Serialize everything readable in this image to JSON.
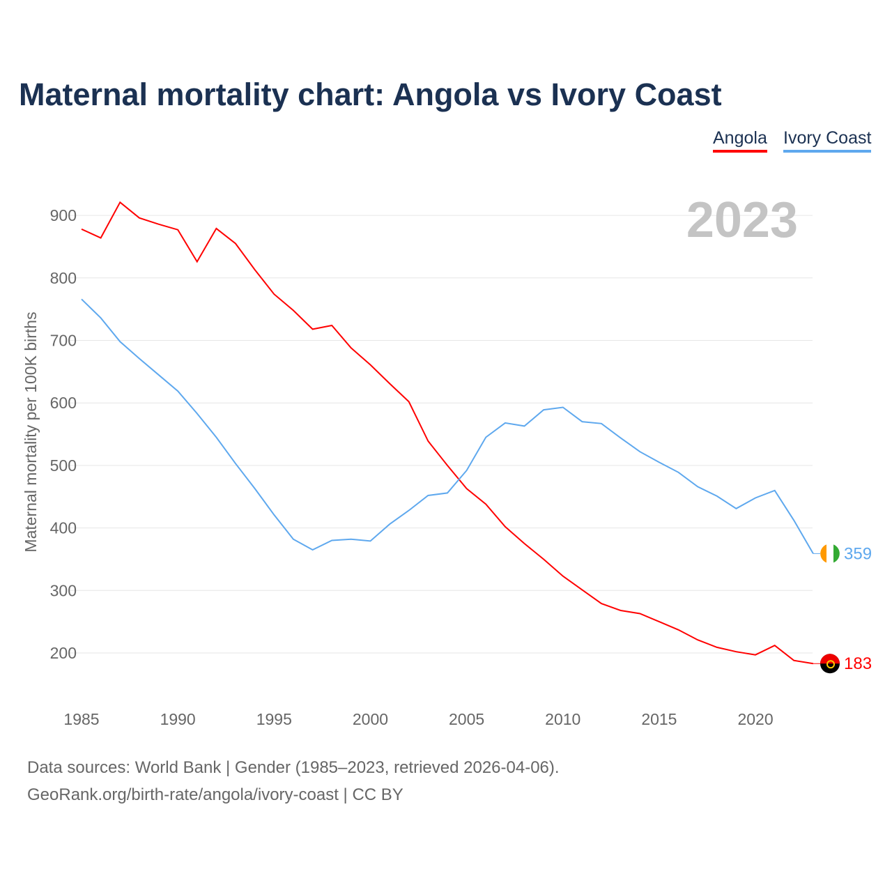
{
  "title": "Maternal mortality chart: Angola vs Ivory Coast",
  "footer": {
    "line1": "Data sources: World Bank | Gender (1985–2023, retrieved 2026-04-06).",
    "line2": "GeoRank.org/birth-rate/angola/ivory-coast | CC BY"
  },
  "chart_data": {
    "type": "line",
    "title": "Maternal mortality chart: Angola vs Ivory Coast",
    "ylabel": "Maternal mortality per 100K births",
    "xlabel": "",
    "year_label": "2023",
    "xlim": [
      1985,
      2023
    ],
    "ylim": [
      150,
      950
    ],
    "x_ticks": [
      1985,
      1990,
      1995,
      2000,
      2005,
      2010,
      2015,
      2020
    ],
    "y_ticks": [
      200,
      300,
      400,
      500,
      600,
      700,
      800,
      900
    ],
    "grid": true,
    "legend_position": "top-right",
    "x": [
      1985,
      1986,
      1987,
      1988,
      1989,
      1990,
      1991,
      1992,
      1993,
      1994,
      1995,
      1996,
      1997,
      1998,
      1999,
      2000,
      2001,
      2002,
      2003,
      2004,
      2005,
      2006,
      2007,
      2008,
      2009,
      2010,
      2011,
      2012,
      2013,
      2014,
      2015,
      2016,
      2017,
      2018,
      2019,
      2020,
      2021,
      2022,
      2023
    ],
    "series": [
      {
        "name": "Angola",
        "color": "#ff0000",
        "end_label": "183",
        "values": [
          878,
          864,
          921,
          896,
          886,
          877,
          826,
          879,
          855,
          813,
          774,
          748,
          718,
          724,
          688,
          661,
          631,
          602,
          539,
          500,
          463,
          438,
          402,
          375,
          350,
          323,
          301,
          279,
          268,
          263,
          250,
          237,
          221,
          209,
          202,
          197,
          212,
          188,
          183
        ]
      },
      {
        "name": "Ivory Coast",
        "color": "#5ea8ee",
        "end_label": "359",
        "values": [
          766,
          736,
          698,
          671,
          645,
          619,
          583,
          545,
          503,
          463,
          421,
          382,
          365,
          380,
          382,
          379,
          406,
          428,
          452,
          456,
          492,
          545,
          568,
          563,
          589,
          593,
          570,
          567,
          544,
          522,
          505,
          489,
          466,
          451,
          431,
          448,
          460,
          412,
          359
        ]
      }
    ]
  }
}
